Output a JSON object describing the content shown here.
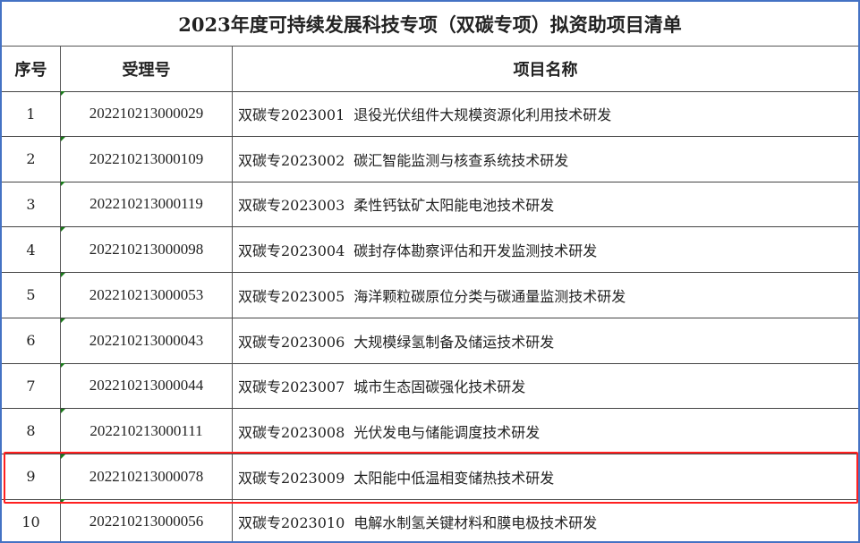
{
  "title": "2023年度可持续发展科技专项（双碳专项）拟资助项目清单",
  "headers": {
    "index": "序号",
    "accept_no": "受理号",
    "project_name": "项目名称"
  },
  "highlight_color": "#ff2020",
  "rows": [
    {
      "index": "1",
      "accept_no": "202210213000029",
      "code": "双碳专2023001",
      "name": "退役光伏组件大规模资源化利用技术研发"
    },
    {
      "index": "2",
      "accept_no": "202210213000109",
      "code": "双碳专2023002",
      "name": "碳汇智能监测与核查系统技术研发"
    },
    {
      "index": "3",
      "accept_no": "202210213000119",
      "code": "双碳专2023003",
      "name": "柔性钙钛矿太阳能电池技术研发"
    },
    {
      "index": "4",
      "accept_no": "202210213000098",
      "code": "双碳专2023004",
      "name": "碳封存体勘察评估和开发监测技术研发"
    },
    {
      "index": "5",
      "accept_no": "202210213000053",
      "code": "双碳专2023005",
      "name": "海洋颗粒碳原位分类与碳通量监测技术研发"
    },
    {
      "index": "6",
      "accept_no": "202210213000043",
      "code": "双碳专2023006",
      "name": "大规模绿氢制备及储运技术研发"
    },
    {
      "index": "7",
      "accept_no": "202210213000044",
      "code": "双碳专2023007",
      "name": "城市生态固碳强化技术研发"
    },
    {
      "index": "8",
      "accept_no": "202210213000111",
      "code": "双碳专2023008",
      "name": "光伏发电与储能调度技术研发"
    },
    {
      "index": "9",
      "accept_no": "202210213000078",
      "code": "双碳专2023009",
      "name": "太阳能中低温相变储热技术研发",
      "highlighted": true
    },
    {
      "index": "10",
      "accept_no": "202210213000056",
      "code": "双碳专2023010",
      "name": "电解水制氢关键材料和膜电极技术研发"
    }
  ]
}
